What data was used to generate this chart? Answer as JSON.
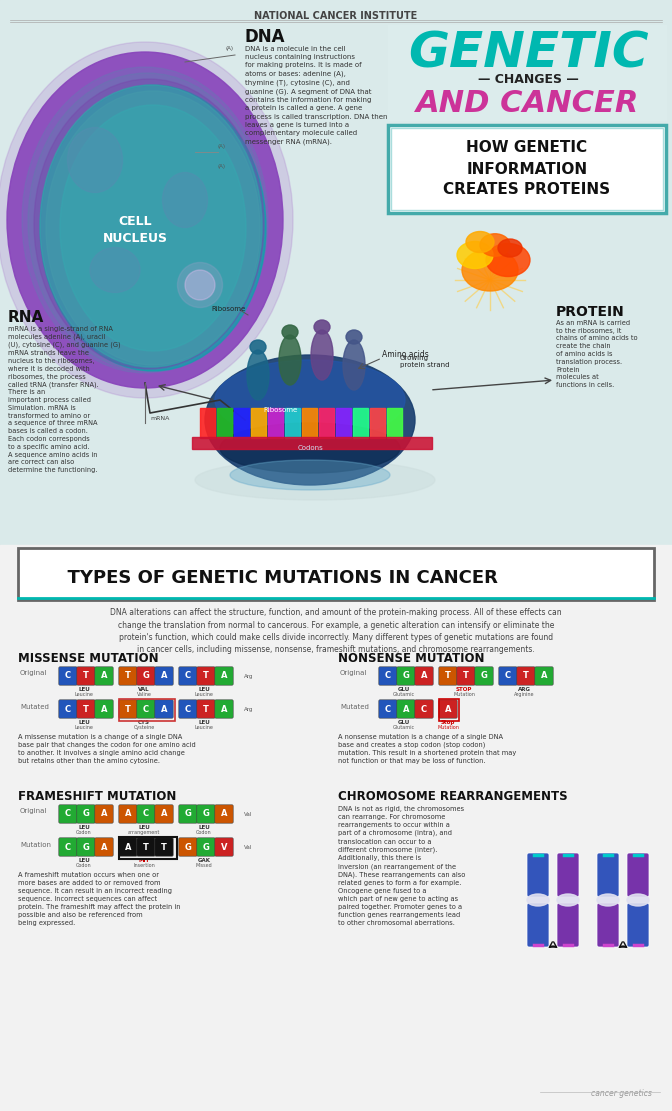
{
  "title_top": "NATIONAL CANCER INSTITUTE",
  "main_title_line1": "GENETIC",
  "main_title_line2": "— CHANGES —",
  "main_title_line3": "AND CANCER",
  "subtitle_box": "HOW GENETIC\nINFORMATION\nCREATES PROTEINS",
  "section2_title": "  TYPES OF GENETIC MUTATIONS IN CANCER",
  "section2_desc": "DNA alterations can affect the structure, function, and amount of the protein-making process. All of these effects can\nchange the translation from normal to cancerous. For example, a genetic alteration can intensify or eliminate the\nprotein's function, which could make cells divide incorrectly. Many different types of genetic mutations are found\nin cancer cells, including missense, nonsense, frameshift mutations, and chromosome rearrangements.",
  "dna_label": "DNA",
  "rna_label": "RNA",
  "protein_label": "PROTEIN",
  "cell_label": "CELL\nNUCLEUS",
  "teal_color": "#00b8b0",
  "pink_color": "#cc3399",
  "purple_color": "#7733aa",
  "bg_top_color": "#e0ecec",
  "bg_bottom_color": "#f5f5f5",
  "white": "#ffffff",
  "black": "#111111",
  "footer_text": "cancer genetics"
}
